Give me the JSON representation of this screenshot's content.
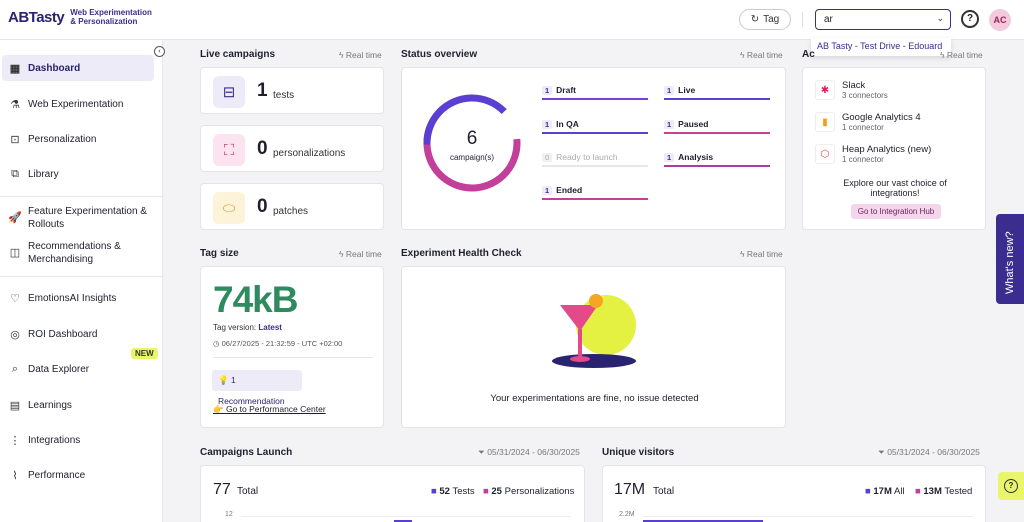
{
  "header": {
    "logo": "ABTasty",
    "logo_sub_1": "Web Experimentation",
    "logo_sub_2": "& Personalization",
    "tag_label": "Tag",
    "search_value": "ar",
    "dropdown_item": "AB Tasty - Test Drive - Edouard",
    "avatar": "AC"
  },
  "sidebar": {
    "items": [
      {
        "label": "Dashboard"
      },
      {
        "label": "Web Experimentation"
      },
      {
        "label": "Personalization"
      },
      {
        "label": "Library"
      },
      {
        "label": "Feature Experimentation &"
      },
      {
        "label": "Rollouts"
      },
      {
        "label": "Recommendations &"
      },
      {
        "label": "Merchandising"
      },
      {
        "label": "EmotionsAI Insights"
      },
      {
        "label": "ROI Dashboard"
      },
      {
        "label": "Data Explorer"
      },
      {
        "label": "Learnings"
      },
      {
        "label": "Integrations"
      },
      {
        "label": "Performance"
      }
    ],
    "new_badge": "NEW"
  },
  "live": {
    "title": "Live campaigns",
    "realtime": "Real time",
    "tests_count": "1",
    "tests_label": "tests",
    "pers_count": "0",
    "pers_label": "personalizations",
    "patches_count": "0",
    "patches_label": "patches"
  },
  "status": {
    "title": "Status overview",
    "realtime": "Real time",
    "total": "6",
    "total_label": "campaign(s)",
    "rows": [
      {
        "count": "1",
        "label": "Draft",
        "color": "#7b3fd0"
      },
      {
        "count": "1",
        "label": "Live",
        "color": "#5b3fd0"
      },
      {
        "count": "1",
        "label": "In QA",
        "color": "#5b3fd0"
      },
      {
        "count": "1",
        "label": "Paused",
        "color": "#cc3f8a"
      },
      {
        "count": "0",
        "label": "Ready to launch",
        "color": "#e6e6ec"
      },
      {
        "count": "1",
        "label": "Analysis",
        "color": "#a43fa8"
      },
      {
        "count": "1",
        "label": "Ended",
        "color": "#c23f9a"
      }
    ]
  },
  "integrations": {
    "title": "Ac",
    "realtime": "Real time",
    "items": [
      {
        "name": "Slack",
        "sub": "3 connectors"
      },
      {
        "name": "Google Analytics 4",
        "sub": "1 connector"
      },
      {
        "name": "Heap Analytics (new)",
        "sub": "1 connector"
      }
    ],
    "explore_1": "Explore our vast choice of",
    "explore_2": "integrations!",
    "hub_button": "Go to Integration Hub"
  },
  "tag": {
    "title": "Tag size",
    "realtime": "Real time",
    "size": "74kB",
    "version_label": "Tag version:",
    "version_value": "Latest",
    "date": "06/27/2025 - 21:32:59 - UTC +02:00",
    "recommendation": "1 Recommendation",
    "perf_link": "Go to Performance Center"
  },
  "health": {
    "title": "Experiment Health Check",
    "realtime": "Real time",
    "message": "Your experimentations are fine, no issue detected"
  },
  "launch": {
    "title": "Campaigns Launch",
    "range": "05/31/2024 - 06/30/2025",
    "total": "77",
    "total_label": "Total",
    "tests": "52",
    "tests_label": "Tests",
    "pers": "25",
    "pers_label": "Personalizations",
    "axis_top": "12"
  },
  "visitors": {
    "title": "Unique visitors",
    "range": "05/31/2024 - 06/30/2025",
    "total": "17M",
    "total_label": "Total",
    "all": "17M",
    "all_label": "All",
    "tested": "13M",
    "tested_label": "Tested",
    "axis_top": "2.2M"
  },
  "whats_new": "What's new?"
}
